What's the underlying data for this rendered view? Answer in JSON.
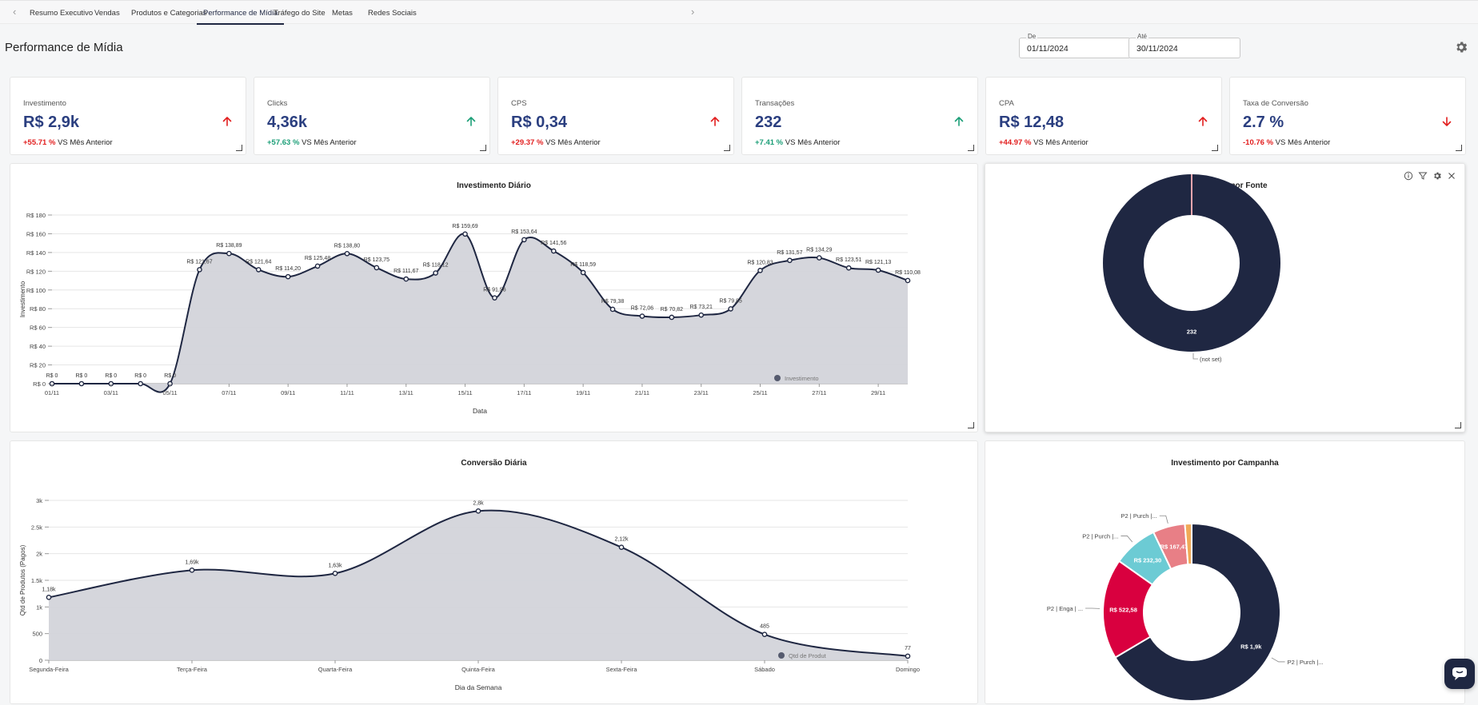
{
  "tabs": {
    "items": [
      {
        "label": "Resumo Executivo"
      },
      {
        "label": "Vendas"
      },
      {
        "label": "Produtos e Categorias"
      },
      {
        "label": "Performance de Mídia",
        "active": true
      },
      {
        "label": "Tráfego do Site"
      },
      {
        "label": "Metas"
      },
      {
        "label": "Redes Sociais"
      }
    ],
    "prev_icon": "chevron-left-icon",
    "next_icon": "chevron-right-icon"
  },
  "page": {
    "title": "Performance de Mídia"
  },
  "date_range": {
    "from_label": "De",
    "from_value": "01/11/2024",
    "to_label": "Até",
    "to_value": "30/11/2024"
  },
  "settings_icon": "gear-icon",
  "colors": {
    "up_red": "#e21e1e",
    "up_green": "#1b9e77",
    "down_red": "#e21e1e",
    "navy": "#1f2742",
    "value_blue": "#2b3f80",
    "area_fill": "#d3d4da"
  },
  "kpis": [
    {
      "label": "Investimento",
      "value": "R$ 2,9k",
      "delta": "+55.71 %",
      "delta_color": "#e21e1e",
      "vs": "VS Mês Anterior",
      "arrow": "arrow-up-icon",
      "arrow_color": "#e21e1e"
    },
    {
      "label": "Clicks",
      "value": "4,36k",
      "delta": "+57.63 %",
      "delta_color": "#1b9e77",
      "vs": "VS Mês Anterior",
      "arrow": "arrow-up-icon",
      "arrow_color": "#1b9e77"
    },
    {
      "label": "CPS",
      "value": "R$ 0,34",
      "delta": "+29.37 %",
      "delta_color": "#e21e1e",
      "vs": "VS Mês Anterior",
      "arrow": "arrow-up-icon",
      "arrow_color": "#e21e1e"
    },
    {
      "label": "Transações",
      "value": "232",
      "delta": "+7.41 %",
      "delta_color": "#1b9e77",
      "vs": "VS Mês Anterior",
      "arrow": "arrow-up-icon",
      "arrow_color": "#1b9e77"
    },
    {
      "label": "CPA",
      "value": "R$ 12,48",
      "delta": "+44.97 %",
      "delta_color": "#e21e1e",
      "vs": "VS Mês Anterior",
      "arrow": "arrow-up-icon",
      "arrow_color": "#e21e1e"
    },
    {
      "label": "Taxa de Conversão",
      "value": "2.7 %",
      "delta": "-10.76 %",
      "delta_color": "#e21e1e",
      "vs": "VS Mês Anterior",
      "arrow": "arrow-down-icon",
      "arrow_color": "#e21e1e"
    }
  ],
  "panel_tools": [
    "info-icon",
    "filter-icon",
    "gear-icon",
    "close-icon"
  ],
  "chart_data": [
    {
      "id": "investimento_diario",
      "type": "area",
      "title": "Investimento Diário",
      "xlabel": "Data",
      "ylabel": "Investimento",
      "ylim": [
        0,
        180
      ],
      "yticks": [
        "R$ 0",
        "R$ 20",
        "R$ 40",
        "R$ 60",
        "R$ 80",
        "R$ 100",
        "R$ 120",
        "R$ 140",
        "R$ 160",
        "R$ 180"
      ],
      "xtick_labels": [
        "01/11",
        "03/11",
        "05/11",
        "07/11",
        "09/11",
        "11/11",
        "13/11",
        "15/11",
        "17/11",
        "19/11",
        "21/11",
        "23/11",
        "25/11",
        "27/11",
        "29/11"
      ],
      "legend": "Investimento",
      "x": [
        "01/11",
        "02/11",
        "03/11",
        "04/11",
        "05/11",
        "06/11",
        "07/11",
        "08/11",
        "09/11",
        "10/11",
        "11/11",
        "12/11",
        "13/11",
        "14/11",
        "15/11",
        "16/11",
        "17/11",
        "18/11",
        "19/11",
        "20/11",
        "21/11",
        "22/11",
        "23/11",
        "24/11",
        "25/11",
        "26/11",
        "27/11",
        "28/11",
        "29/11",
        "30/11"
      ],
      "values": [
        0,
        0,
        0,
        0,
        0,
        121.67,
        138.89,
        121.64,
        114.2,
        125.48,
        138.8,
        123.75,
        111.67,
        118.12,
        159.69,
        91.56,
        153.64,
        141.56,
        118.59,
        79.38,
        72.06,
        70.82,
        73.21,
        79.85,
        120.83,
        131.57,
        134.29,
        123.51,
        121.13,
        110.08
      ],
      "data_labels": [
        "R$ 0",
        "R$ 0",
        "R$ 0",
        "R$ 0",
        "R$ 0",
        "R$ 121,67",
        "R$ 138,89",
        "R$ 121,64",
        "R$ 114,20",
        "R$ 125,48",
        "R$ 138,80",
        "R$ 123,75",
        "R$ 111,67",
        "R$ 118,12",
        "R$ 159,69",
        "R$ 91,56",
        "R$ 153,64",
        "R$ 141,56",
        "R$ 118,59",
        "R$ 79,38",
        "R$ 72,06",
        "R$ 70,82",
        "R$ 73,21",
        "R$ 79,85",
        "R$ 120,83",
        "R$ 131,57",
        "R$ 134,29",
        "R$ 123,51",
        "R$ 121,13",
        "R$ 110,08"
      ]
    },
    {
      "id": "conversoes_por_fonte",
      "type": "pie",
      "title": "Conversões por Fonte",
      "categories": [
        "(not set)"
      ],
      "values": [
        232
      ],
      "data_labels": [
        "232"
      ],
      "colors": [
        "#1f2742"
      ]
    },
    {
      "id": "conversao_diaria",
      "type": "area",
      "title": "Conversão Diária",
      "xlabel": "Dia da Semana",
      "ylabel": "Qtd de Produtos (Pagos)",
      "ylim": [
        0,
        3000
      ],
      "yticks": [
        "0",
        "500",
        "1k",
        "1.5k",
        "2k",
        "2.5k",
        "3k"
      ],
      "categories": [
        "Segunda-Feira",
        "Terça-Feira",
        "Quarta-Feira",
        "Quinta-Feira",
        "Sexta-Feira",
        "Sábado",
        "Domingo"
      ],
      "values": [
        1180,
        1690,
        1630,
        2800,
        2120,
        485,
        77
      ],
      "data_labels": [
        "1,18k",
        "1,69k",
        "1,63k",
        "2,8k",
        "2,12k",
        "485",
        "77"
      ],
      "legend": "Qtd de Produt"
    },
    {
      "id": "investimento_por_campanha",
      "type": "pie",
      "title": "Investimento por Campanha",
      "categories": [
        "P2 | Purch |...",
        "P2 | Enga | ...",
        "P2 | Purch |...",
        "P2 | Purch |...",
        ""
      ],
      "values": [
        1900,
        522.58,
        232.3,
        167.47,
        35
      ],
      "data_labels": [
        "R$ 1,9k",
        "R$ 522,58",
        "R$ 232,30",
        "R$ 167,47",
        ""
      ],
      "colors": [
        "#1f2742",
        "#d9003f",
        "#6ccbd4",
        "#e87f86",
        "#f0a958"
      ]
    }
  ]
}
